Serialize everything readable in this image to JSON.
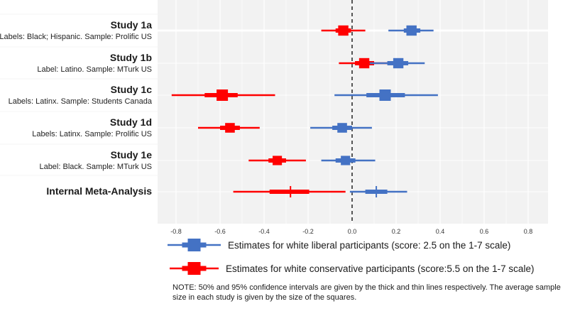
{
  "chart_data": {
    "type": "forest",
    "title": "",
    "xlabel": "",
    "ylabel": "",
    "xlim": [
      -0.88,
      0.88
    ],
    "x_ticks": [
      -0.8,
      -0.6,
      -0.4,
      -0.2,
      0.0,
      0.2,
      0.4,
      0.6,
      0.8
    ],
    "x_tick_labels": [
      "-0.8",
      "-0.6",
      "-0.4",
      "-0.2",
      "0.0",
      "0.2",
      "0.4",
      "0.6",
      "0.8"
    ],
    "reference_line": 0.0,
    "grid": true,
    "legend_position": "bottom",
    "series": [
      {
        "key": "liberal",
        "name": "Estimates for white liberal participants (score: 2.5 on the 1-7 scale)",
        "color": "#4472c4"
      },
      {
        "key": "conservative",
        "name": "Estimates for white conservative participants (score:5.5 on the 1-7 scale)",
        "color": "#ff0000"
      }
    ],
    "studies": [
      {
        "title": "Study 1a",
        "subtitle": "Labels: Black; Hispanic. Sample: Prolific US",
        "relative_sample_size": 0.9,
        "conservative": {
          "estimate": -0.04,
          "ci50": [
            -0.075,
            -0.005
          ],
          "ci95": [
            -0.14,
            0.06
          ]
        },
        "liberal": {
          "estimate": 0.27,
          "ci50": [
            0.235,
            0.31
          ],
          "ci95": [
            0.165,
            0.37
          ]
        }
      },
      {
        "title": "Study 1b",
        "subtitle": "Label: Latino. Sample: MTurk US",
        "relative_sample_size": 0.9,
        "conservative": {
          "estimate": 0.055,
          "ci50": [
            0.013,
            0.1
          ],
          "ci95": [
            -0.06,
            0.17
          ]
        },
        "liberal": {
          "estimate": 0.21,
          "ci50": [
            0.16,
            0.255
          ],
          "ci95": [
            0.08,
            0.33
          ]
        }
      },
      {
        "title": "Study 1c",
        "subtitle": "Labels: Latinx. Sample: Students Canada",
        "relative_sample_size": 1.0,
        "conservative": {
          "estimate": -0.59,
          "ci50": [
            -0.67,
            -0.52
          ],
          "ci95": [
            -0.82,
            -0.35
          ]
        },
        "liberal": {
          "estimate": 0.15,
          "ci50": [
            0.065,
            0.24
          ],
          "ci95": [
            -0.08,
            0.39
          ]
        }
      },
      {
        "title": "Study 1d",
        "subtitle": "Labels: Latinx. Sample: Prolific US",
        "relative_sample_size": 0.85,
        "conservative": {
          "estimate": -0.555,
          "ci50": [
            -0.6,
            -0.51
          ],
          "ci95": [
            -0.7,
            -0.42
          ]
        },
        "liberal": {
          "estimate": -0.045,
          "ci50": [
            -0.09,
            0.0
          ],
          "ci95": [
            -0.19,
            0.09
          ]
        }
      },
      {
        "title": "Study 1e",
        "subtitle": "Label: Black. Sample: MTurk US",
        "relative_sample_size": 0.82,
        "conservative": {
          "estimate": -0.34,
          "ci50": [
            -0.38,
            -0.3
          ],
          "ci95": [
            -0.47,
            -0.21
          ]
        },
        "liberal": {
          "estimate": -0.03,
          "ci50": [
            -0.075,
            0.015
          ],
          "ci95": [
            -0.14,
            0.105
          ]
        }
      },
      {
        "title": "Internal Meta-Analysis",
        "subtitle": "",
        "relative_sample_size": 0,
        "conservative": {
          "estimate": -0.28,
          "ci50": [
            -0.375,
            -0.195
          ],
          "ci95": [
            -0.54,
            -0.03
          ]
        },
        "liberal": {
          "estimate": 0.11,
          "ci50": [
            0.06,
            0.16
          ],
          "ci95": [
            -0.01,
            0.25
          ]
        }
      }
    ]
  },
  "note": "NOTE: 50% and 95% confidence intervals are given by the thick and thin lines respectively. The average sample size in each study is given by the size of the squares."
}
